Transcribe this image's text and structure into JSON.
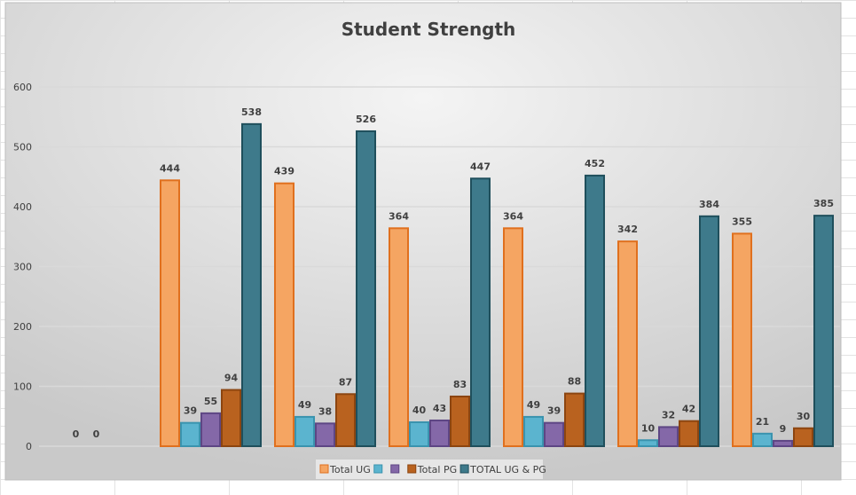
{
  "chart_data": {
    "type": "bar",
    "title": "Student Strength",
    "xlabel": "",
    "ylabel": "",
    "ylim": [
      0,
      600
    ],
    "yticks": [
      "0",
      "100",
      "200",
      "300",
      "400",
      "500",
      "600"
    ],
    "grid": true,
    "legend_position": "bottom",
    "categories": [
      "",
      "",
      "",
      "",
      "",
      "",
      ""
    ],
    "series": [
      {
        "name": "Total UG",
        "color": "#F5A562",
        "stroke": "#E0701E",
        "values": [
          null,
          444,
          439,
          364,
          364,
          342,
          355
        ]
      },
      {
        "name": "",
        "color": "#5BB4CF",
        "stroke": "#3A93AE",
        "values": [
          0,
          39,
          49,
          40,
          49,
          10,
          21
        ]
      },
      {
        "name": "",
        "color": "#8468A8",
        "stroke": "#5E4684",
        "values": [
          0,
          55,
          38,
          43,
          39,
          32,
          9
        ]
      },
      {
        "name": "Total PG",
        "color": "#B9621F",
        "stroke": "#8C4510",
        "values": [
          null,
          94,
          87,
          83,
          88,
          42,
          30
        ]
      },
      {
        "name": "TOTAL UG & PG",
        "color": "#3E7A8B",
        "stroke": "#1F4F5C",
        "values": [
          null,
          538,
          526,
          447,
          452,
          384,
          385
        ]
      }
    ]
  }
}
